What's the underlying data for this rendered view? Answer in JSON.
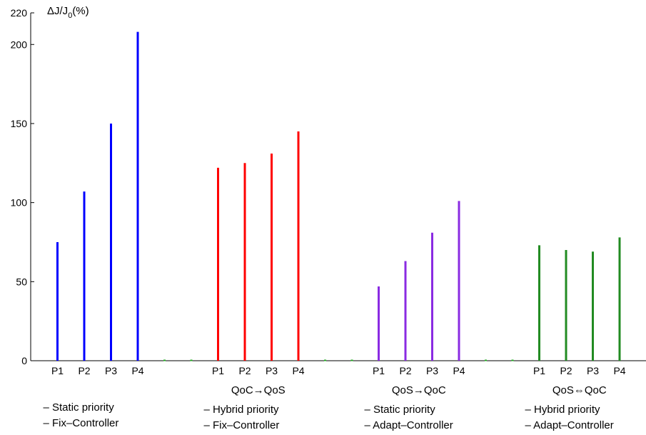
{
  "chart_data": {
    "type": "bar",
    "ylabel": "ΔJ/J",
    "ylabel_sub": "0",
    "ylabel_suffix": "(%)",
    "ylim": [
      0,
      220
    ],
    "yticks": [
      0,
      50,
      100,
      150,
      200,
      220
    ],
    "grid": false,
    "groups": [
      {
        "name": "",
        "lines": [
          "– Static priority",
          "– Fix–Controller"
        ],
        "color": "#0000ff",
        "categories": [
          "P1",
          "P2",
          "P3",
          "P4"
        ],
        "values": [
          75,
          107,
          150,
          208
        ]
      },
      {
        "name": "QoC→QoS",
        "lines": [
          "– Hybrid priority",
          "– Fix–Controller"
        ],
        "color": "#ff0000",
        "categories": [
          "P1",
          "P2",
          "P3",
          "P4"
        ],
        "values": [
          122,
          125,
          131,
          145
        ]
      },
      {
        "name": "QoS→QoC",
        "lines": [
          "– Static priority",
          "– Adapt–Controller"
        ],
        "color": "#8a2be2",
        "categories": [
          "P1",
          "P2",
          "P3",
          "P4"
        ],
        "values": [
          47,
          63,
          81,
          101
        ]
      },
      {
        "name": "QoS⇔QoC",
        "lines": [
          "– Hybrid priority",
          "– Adapt–Controller"
        ],
        "color": "#228b22",
        "categories": [
          "P1",
          "P2",
          "P3",
          "P4"
        ],
        "values": [
          73,
          70,
          69,
          78
        ]
      }
    ],
    "gap_markers_color": "#22aa22"
  }
}
